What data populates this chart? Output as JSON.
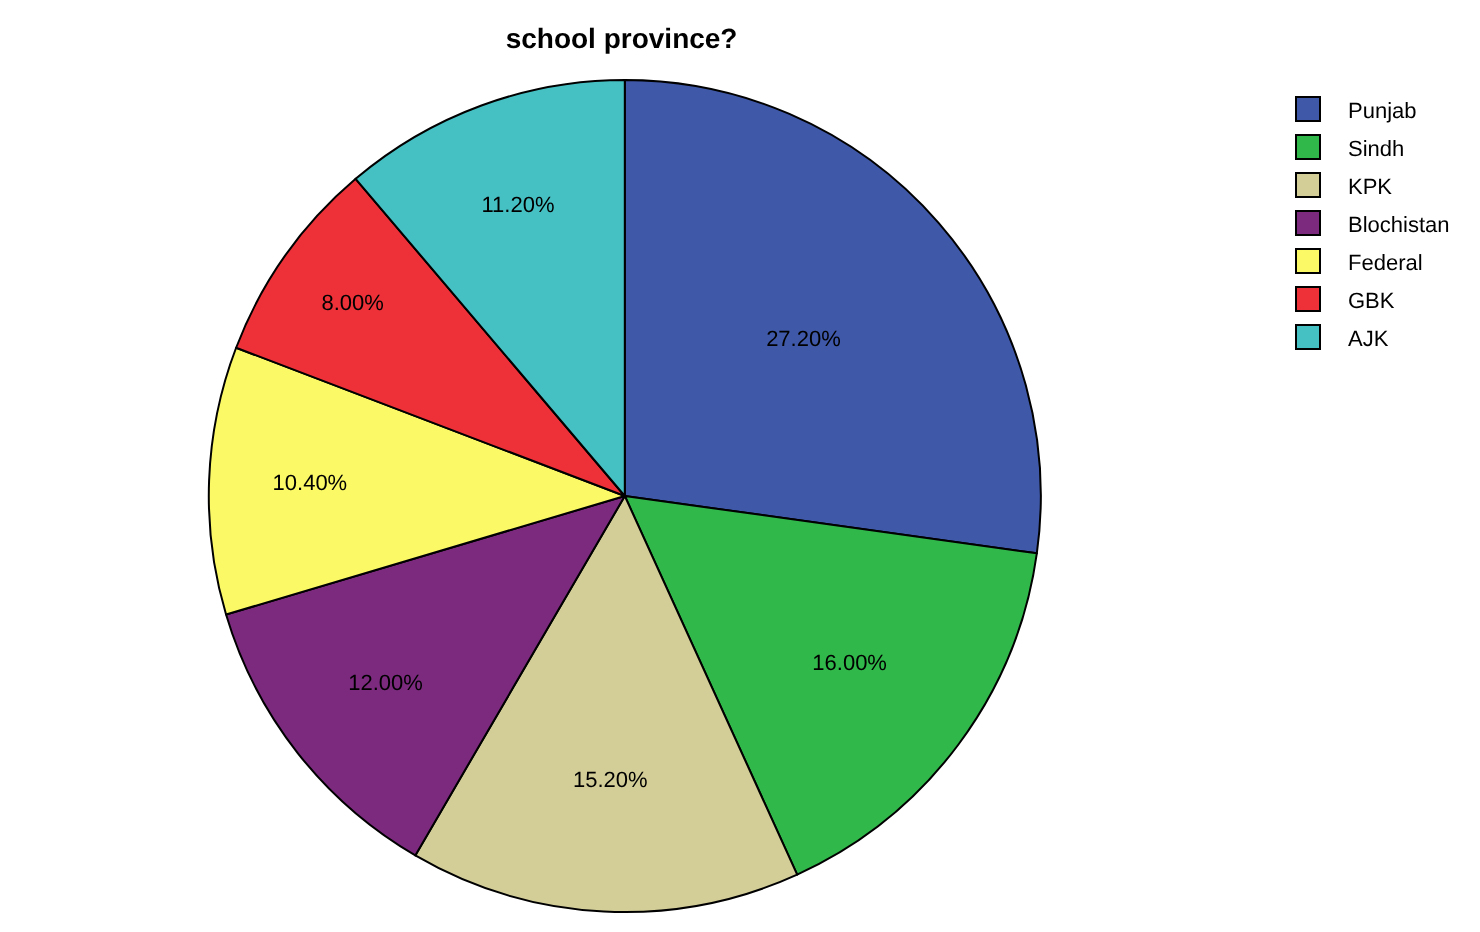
{
  "chart_data": {
    "type": "pie",
    "title": "school province?",
    "categories": [
      "Punjab",
      "Sindh",
      "KPK",
      "Blochistan",
      "Federal",
      "GBK",
      "AJK"
    ],
    "values": [
      27.2,
      16.0,
      15.2,
      12.0,
      10.4,
      8.0,
      11.2
    ],
    "colors": [
      "#3f58a8",
      "#30b84a",
      "#d3ce98",
      "#7b2a7e",
      "#fbf965",
      "#ee3038",
      "#45c1c4"
    ],
    "value_labels": [
      "27.20%",
      "16.00%",
      "15.20%",
      "12.00%",
      "10.40%",
      "8.00%",
      "11.20%"
    ],
    "legend": "top right"
  }
}
